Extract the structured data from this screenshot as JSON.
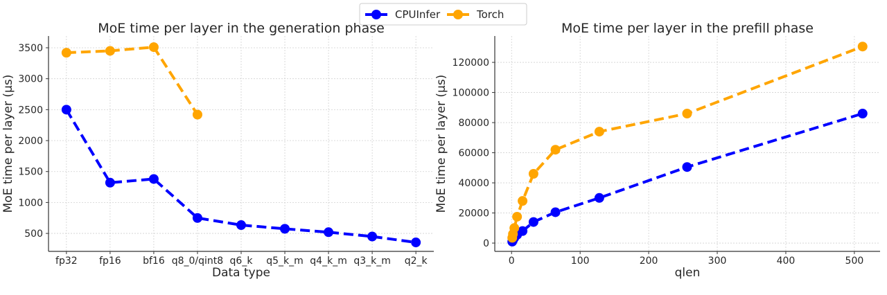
{
  "legend": {
    "placement": "top-center",
    "entries": [
      {
        "name": "CPUInfer",
        "color": "#0000ff"
      },
      {
        "name": "Torch",
        "color": "#ffa500"
      }
    ]
  },
  "chart_data": [
    {
      "type": "line",
      "title": "MoE time per layer in the generation phase",
      "xlabel": "Data type",
      "ylabel": "MoE time per layer (µs)",
      "categories": [
        "fp32",
        "fp16",
        "bf16",
        "q8_0/qint8",
        "q6_k",
        "q5_k_m",
        "q4_k_m",
        "q3_k_m",
        "q2_k"
      ],
      "yticks": [
        500,
        1000,
        1500,
        2000,
        2500,
        3000,
        3500
      ],
      "ylim": [
        210,
        3690
      ],
      "grid": true,
      "series": [
        {
          "name": "CPUInfer",
          "color": "#0000ff",
          "values": [
            2500,
            1320,
            1380,
            750,
            635,
            575,
            520,
            450,
            355
          ]
        },
        {
          "name": "Torch",
          "color": "#ffa500",
          "values": [
            3420,
            3450,
            3510,
            2420,
            null,
            null,
            null,
            null,
            null
          ]
        }
      ]
    },
    {
      "type": "line",
      "title": "MoE time per layer in the prefill phase",
      "xlabel": "qlen",
      "ylabel": "MoE time per layer (µs)",
      "x": [
        1,
        2,
        4,
        8,
        16,
        32,
        64,
        128,
        256,
        512
      ],
      "xticks": [
        0,
        100,
        200,
        300,
        400,
        500
      ],
      "yticks": [
        0,
        20000,
        40000,
        60000,
        80000,
        100000,
        120000
      ],
      "xlim": [
        -24.5,
        537.5
      ],
      "ylim": [
        -5500,
        137500
      ],
      "grid": true,
      "series": [
        {
          "name": "CPUInfer",
          "color": "#0000ff",
          "values": [
            1000,
            2000,
            3500,
            5500,
            8000,
            14000,
            20500,
            30000,
            50500,
            86000
          ]
        },
        {
          "name": "Torch",
          "color": "#ffa500",
          "values": [
            3500,
            6000,
            10000,
            17500,
            28000,
            46000,
            62000,
            74000,
            86000,
            130500
          ]
        }
      ]
    }
  ]
}
